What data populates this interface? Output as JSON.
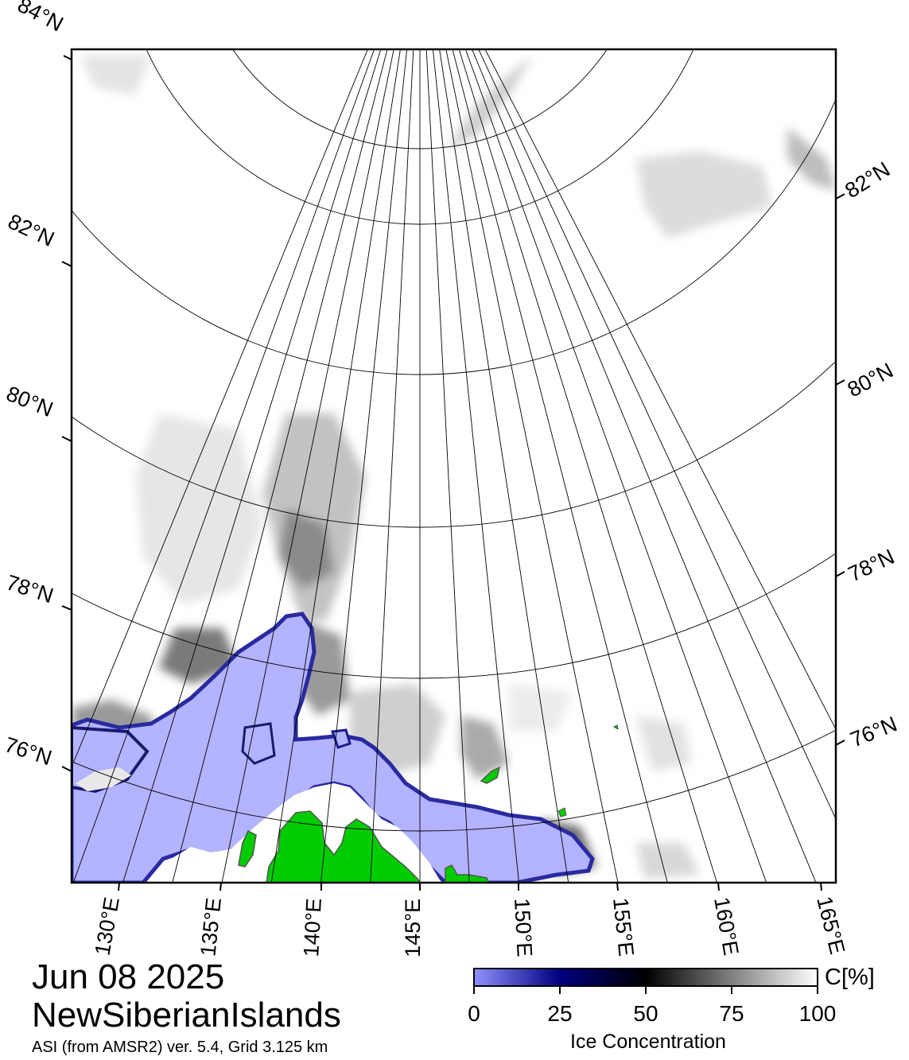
{
  "title": {
    "date": "Jun 08 2025",
    "region": "NewSiberianIslands",
    "source": "ASI (from AMSR2) ver. 5.4,  Grid 3.125 km"
  },
  "map": {
    "projection": "polar stereographic",
    "lat_labels_left": [
      "84°N",
      "82°N",
      "80°N",
      "78°N",
      "76°N"
    ],
    "lat_labels_right": [
      "82°N",
      "80°N",
      "78°N",
      "76°N"
    ],
    "lon_labels": [
      "130°E",
      "135°E",
      "140°E",
      "145°E",
      "150°E",
      "155°E",
      "160°E",
      "165°E"
    ],
    "colors": {
      "open_water_zero_ice": "#b3b3ff",
      "land": "#00cc00",
      "coast_mask": "#8c8c8c",
      "full_ice": "#ffffff"
    }
  },
  "colorbar": {
    "title": "Ice Concentration",
    "unit": "C[%]",
    "ticks": [
      "0",
      "25",
      "50",
      "75",
      "100"
    ],
    "range": [
      0,
      100
    ],
    "stops": [
      "#9090ff",
      "#000080",
      "#000000",
      "#808080",
      "#ffffff"
    ]
  }
}
